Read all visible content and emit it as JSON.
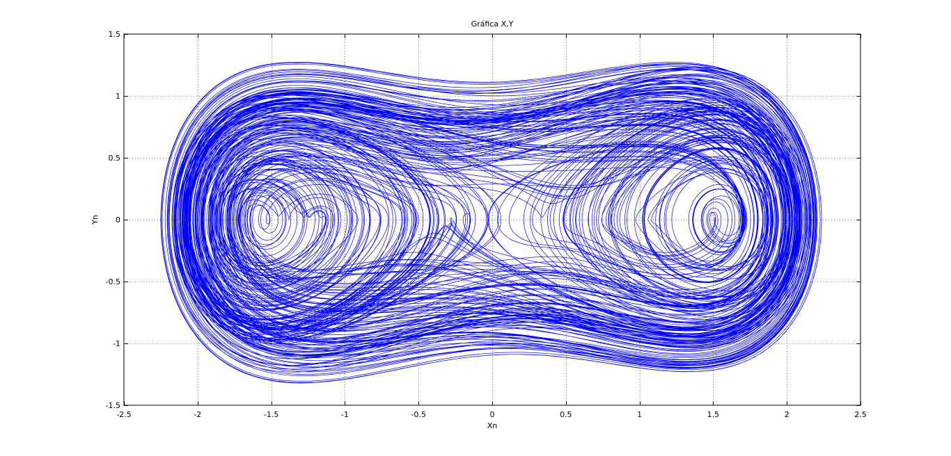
{
  "chart_data": {
    "type": "line",
    "title": "Gráfica X,Y",
    "xlabel": "Xn",
    "ylabel": "Yn",
    "xlim": [
      -2.5,
      2.5
    ],
    "ylim": [
      -1.5,
      1.5
    ],
    "xticks": [
      -2.5,
      -2,
      -1.5,
      -1,
      -0.5,
      0,
      0.5,
      1,
      1.5,
      2,
      2.5
    ],
    "yticks": [
      -1.5,
      -1,
      -0.5,
      0,
      0.5,
      1,
      1.5
    ],
    "xtick_labels": [
      "-2.5",
      "-2",
      "-1.5",
      "-1",
      "-0.5",
      "0",
      "0.5",
      "1",
      "1.5",
      "2",
      "2.5"
    ],
    "ytick_labels": [
      "-1.5",
      "-1",
      "-0.5",
      "0",
      "0.5",
      "1",
      "1.5"
    ],
    "grid": true,
    "grid_style": "dotted",
    "legend": "none",
    "series": [
      {
        "color": "#0000ff",
        "kind": "double-scroll phase portrait (chaotic attractor)",
        "left_lobe": {
          "center": [
            -1,
            0
          ],
          "x_range": [
            -2.25,
            0.05
          ],
          "y_range": [
            -1.0,
            1.32
          ]
        },
        "right_lobe": {
          "center": [
            1,
            0
          ],
          "x_range": [
            -0.05,
            2.25
          ],
          "y_range": [
            -1.32,
            1.02
          ]
        }
      }
    ]
  }
}
